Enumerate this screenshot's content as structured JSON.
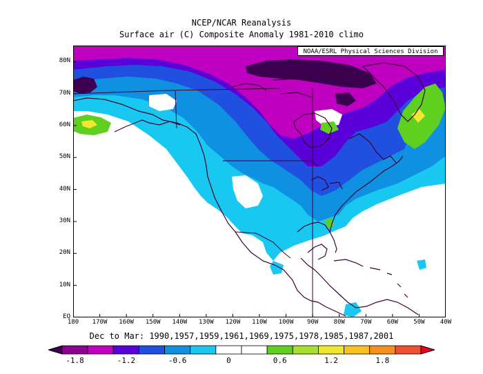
{
  "title": "NCEP/NCAR Reanalysis",
  "subtitle": "Surface air (C) Composite Anomaly 1981-2010 climo",
  "credit": "NOAA/ESRL Physical Sciences Division",
  "composite_dates": "Dec to Mar: 1990,1957,1959,1961,1969,1975,1978,1985,1987,2001",
  "map": {
    "lat_range": [
      0,
      85
    ],
    "lon_range": [
      -180,
      -40
    ],
    "lat_ticks": [
      "80N",
      "70N",
      "60N",
      "50N",
      "40N",
      "30N",
      "20N",
      "10N",
      "EQ"
    ],
    "lat_values": [
      80,
      70,
      60,
      50,
      40,
      30,
      20,
      10,
      0
    ],
    "lon_ticks": [
      "180",
      "170W",
      "160W",
      "150W",
      "140W",
      "130W",
      "120W",
      "110W",
      "100W",
      "90W",
      "80W",
      "70W",
      "60W",
      "50W",
      "40W"
    ],
    "lon_values": [
      -180,
      -170,
      -160,
      -150,
      -140,
      -130,
      -120,
      -110,
      -100,
      -90,
      -80,
      -70,
      -60,
      -50,
      -40
    ]
  },
  "colorbar": {
    "colors": [
      "#3c0050",
      "#8c0090",
      "#c000c0",
      "#5a00d8",
      "#2050e0",
      "#1090e0",
      "#18c8f0",
      "#ffffff",
      "#ffffff",
      "#60d020",
      "#a8e030",
      "#f0e830",
      "#f8c020",
      "#f89020",
      "#f05030",
      "#f00020"
    ],
    "labels": [
      "-1.8",
      "-1.2",
      "-0.6",
      "0",
      "0.6",
      "1.2",
      "1.8"
    ]
  },
  "colors": {
    "deep_purple": "#3c0050",
    "magenta": "#c000c0",
    "violet": "#5a00d8",
    "blue": "#2050e0",
    "light_blue": "#1090e0",
    "cyan": "#18c8f0",
    "green": "#60d020",
    "yellow": "#f0e830",
    "coast": "#3c0030"
  }
}
